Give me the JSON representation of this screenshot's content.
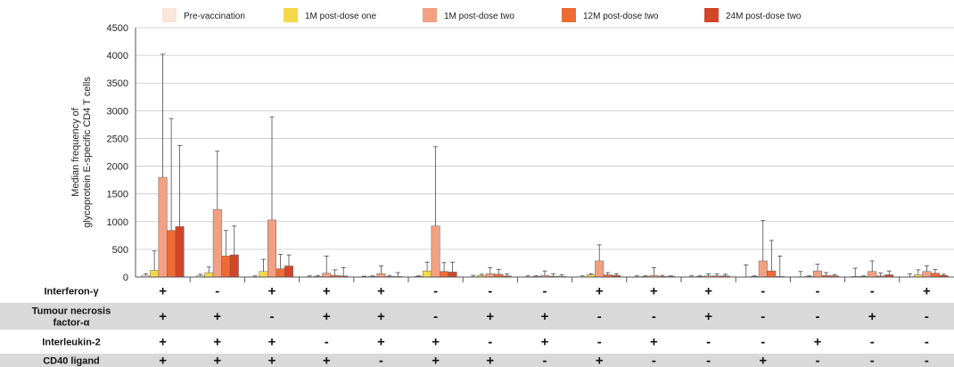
{
  "chart_data": {
    "type": "bar",
    "ylabel": "Median frequency of glycoprotein E-specific CD4 T cells",
    "ylabel_lines": [
      "Median frequency of",
      "glycoprotein E-specific CD4 T cells"
    ],
    "ylim": [
      0,
      4500
    ],
    "yticks": [
      "0",
      "500",
      "1000",
      "1500",
      "2000",
      "2500",
      "3000",
      "3500",
      "4000",
      "4500"
    ],
    "grid": true,
    "legend_position": "top",
    "series": [
      {
        "name": "Pre-vaccination",
        "color": "#fbe5dc",
        "values": [
          30,
          20,
          5,
          5,
          5,
          10,
          5,
          5,
          5,
          5,
          5,
          5,
          5,
          10,
          5
        ],
        "err_high": [
          60,
          50,
          20,
          20,
          15,
          20,
          30,
          20,
          20,
          20,
          20,
          220,
          100,
          160,
          60
        ]
      },
      {
        "name": "1M post-dose one",
        "color": "#f5d84a",
        "values": [
          120,
          80,
          100,
          10,
          10,
          110,
          30,
          10,
          40,
          10,
          10,
          10,
          10,
          10,
          40
        ],
        "err_high": [
          470,
          180,
          320,
          30,
          20,
          270,
          50,
          20,
          60,
          20,
          20,
          20,
          20,
          20,
          130
        ]
      },
      {
        "name": "1M post-dose two",
        "color": "#f3a082",
        "values": [
          1800,
          1220,
          1030,
          70,
          60,
          920,
          60,
          30,
          290,
          30,
          20,
          290,
          110,
          100,
          100
        ],
        "err_high": [
          4020,
          2270,
          2890,
          380,
          200,
          2350,
          170,
          110,
          580,
          170,
          60,
          1020,
          230,
          290,
          200
        ]
      },
      {
        "name": "12M post-dose two",
        "color": "#ef6b35",
        "values": [
          840,
          380,
          150,
          30,
          10,
          100,
          50,
          15,
          40,
          10,
          20,
          110,
          30,
          20,
          70
        ],
        "err_high": [
          2860,
          840,
          410,
          130,
          30,
          260,
          140,
          60,
          80,
          30,
          60,
          660,
          80,
          70,
          140
        ]
      },
      {
        "name": "24M post-dose two",
        "color": "#d24527",
        "values": [
          910,
          400,
          200,
          20,
          10,
          90,
          20,
          10,
          30,
          10,
          20,
          10,
          20,
          40,
          30
        ],
        "err_high": [
          2370,
          920,
          400,
          170,
          80,
          270,
          60,
          40,
          60,
          20,
          50,
          380,
          40,
          110,
          50
        ]
      }
    ],
    "table_rows": [
      {
        "label": "Interferon-γ",
        "label_lines": [
          "Interferon-γ"
        ],
        "values": [
          "+",
          "-",
          "+",
          "+",
          "+",
          "-",
          "-",
          "-",
          "+",
          "+",
          "+",
          "-",
          "-",
          "-",
          "+"
        ]
      },
      {
        "label": "Tumour necrosis factor-α",
        "label_lines": [
          "Tumour necrosis",
          "factor-α"
        ],
        "values": [
          "+",
          "+",
          "-",
          "+",
          "+",
          "-",
          "+",
          "+",
          "-",
          "-",
          "+",
          "-",
          "-",
          "+",
          "-"
        ]
      },
      {
        "label": "Interleukin-2",
        "label_lines": [
          "Interleukin-2"
        ],
        "values": [
          "+",
          "+",
          "+",
          "-",
          "+",
          "+",
          "-",
          "+",
          "-",
          "+",
          "-",
          "-",
          "+",
          "-",
          "-"
        ]
      },
      {
        "label": "CD40 ligand",
        "label_lines": [
          "CD40 ligand"
        ],
        "values": [
          "+",
          "+",
          "+",
          "+",
          "-",
          "+",
          "+",
          "-",
          "+",
          "-",
          "-",
          "+",
          "-",
          "-",
          "-"
        ]
      }
    ]
  }
}
